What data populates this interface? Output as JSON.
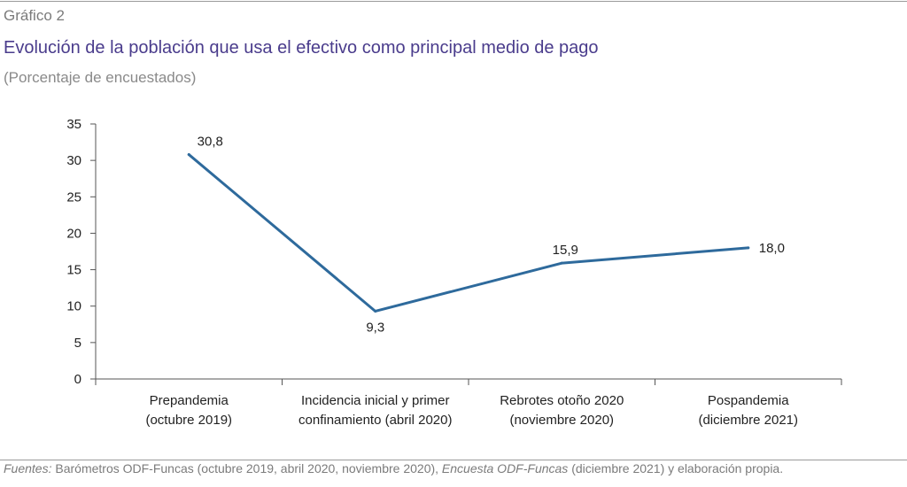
{
  "header": {
    "label": "Gráfico 2",
    "title": "Evolución de la población que usa el efectivo como principal medio de pago",
    "subtitle": "(Porcentaje de encuestados)"
  },
  "source": {
    "prefix": "Fuentes:",
    "text1": " Barómetros ODF-Funcas (octubre 2019, abril 2020, noviembre 2020), ",
    "italic": "Encuesta ODF-Funcas",
    "text2": " (diciembre 2021) y elaboración propia."
  },
  "colors": {
    "line": "#2e6a9c",
    "axis": "#555555",
    "title": "#4a3c8c"
  },
  "chart_data": {
    "type": "line",
    "categories": [
      [
        "Prepandemia",
        "(octubre 2019)"
      ],
      [
        "Incidencia inicial y primer",
        "confinamiento (abril 2020)"
      ],
      [
        "Rebrotes otoño 2020",
        "(noviembre 2020)"
      ],
      [
        "Pospandemia",
        "(diciembre 2021)"
      ]
    ],
    "values": [
      30.8,
      9.3,
      15.9,
      18.0
    ],
    "data_labels": [
      "30,8",
      "9,3",
      "15,9",
      "18,0"
    ],
    "yticks": [
      0,
      5,
      10,
      15,
      20,
      25,
      30,
      35
    ],
    "ylim": [
      0,
      35
    ],
    "grid": false,
    "legend": "none"
  }
}
